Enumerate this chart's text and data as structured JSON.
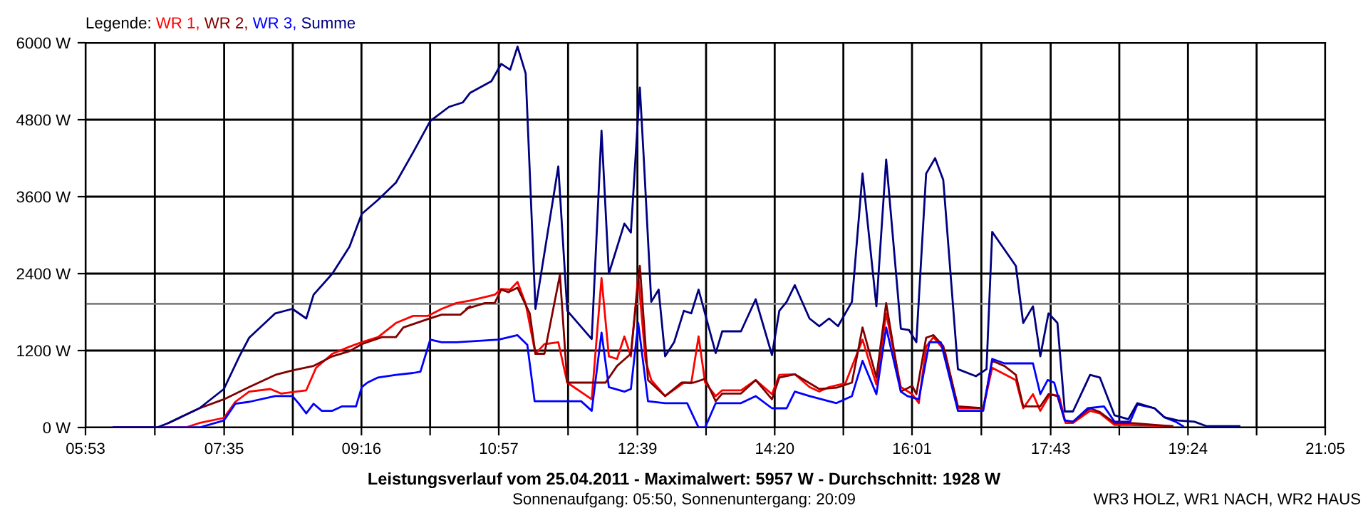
{
  "chart_data": {
    "type": "line",
    "title": "Leistungsverlauf vom 25.04.2011 - Maximalwert: 5957 W - Durchschnitt: 1928 W",
    "subtitle": "Sonnenaufgang: 05:50, Sonnenuntergang: 20:09",
    "legend_title": "Legende:",
    "annotations": [
      "WR3 HOLZ, WR1 NACH, WR2 HAUS"
    ],
    "series": [
      {
        "name": "WR 1,",
        "color": "#ff0000",
        "x": [
          6.23,
          7.11,
          7.28,
          7.58,
          7.72,
          7.89,
          8.15,
          8.28,
          8.59,
          8.71,
          8.91,
          9.12,
          9.27,
          9.47,
          9.69,
          9.9,
          10.08,
          10.25,
          10.43,
          10.6,
          10.9,
          10.98,
          11.09,
          11.18,
          11.28,
          11.4,
          11.51,
          11.68,
          11.79,
          12.09,
          12.21,
          12.3,
          12.4,
          12.49,
          12.57,
          12.66,
          12.75,
          12.82,
          12.99,
          13.22,
          13.31,
          13.4,
          13.48,
          13.61,
          13.69,
          13.92,
          14.1,
          14.3,
          14.39,
          14.58,
          14.76,
          14.88,
          15.0,
          15.2,
          15.41,
          15.58,
          15.7,
          15.88,
          16.02,
          16.1,
          16.19,
          16.28,
          16.42,
          16.58,
          16.89,
          17.0,
          17.29,
          17.38,
          17.5,
          17.59,
          17.71,
          17.82,
          17.9,
          17.99,
          18.2,
          18.32,
          18.5,
          18.69,
          19.21
        ],
        "values": [
          0,
          0,
          70,
          150,
          400,
          560,
          600,
          530,
          580,
          930,
          1150,
          1260,
          1330,
          1410,
          1630,
          1740,
          1740,
          1850,
          1940,
          1980,
          2070,
          2160,
          2150,
          2270,
          1930,
          1150,
          1300,
          1330,
          700,
          440,
          2330,
          1110,
          1070,
          1420,
          1110,
          2370,
          1040,
          740,
          490,
          700,
          690,
          1420,
          700,
          490,
          580,
          580,
          740,
          520,
          820,
          830,
          630,
          560,
          630,
          690,
          1370,
          670,
          1780,
          630,
          520,
          380,
          1260,
          1410,
          1190,
          300,
          300,
          930,
          740,
          300,
          520,
          260,
          520,
          490,
          70,
          70,
          260,
          220,
          40,
          40,
          20
        ]
      },
      {
        "name": "WR 2,",
        "color": "#800000",
        "x": [
          6.9,
          7.28,
          7.58,
          7.89,
          8.21,
          8.42,
          8.68,
          8.91,
          9.12,
          9.27,
          9.52,
          9.69,
          9.78,
          10.08,
          10.25,
          10.48,
          10.6,
          10.55,
          10.78,
          10.9,
          10.98,
          11.07,
          11.18,
          11.33,
          11.4,
          11.51,
          11.7,
          11.79,
          12.26,
          12.4,
          12.57,
          12.68,
          12.78,
          12.99,
          13.19,
          13.34,
          13.48,
          13.61,
          13.69,
          13.92,
          14.1,
          14.3,
          14.39,
          14.58,
          14.88,
          15.09,
          15.28,
          15.41,
          15.58,
          15.7,
          15.88,
          16.02,
          16.07,
          16.19,
          16.28,
          16.4,
          16.58,
          16.89,
          17.0,
          17.15,
          17.29,
          17.38,
          17.59,
          17.69,
          17.8,
          17.89,
          17.99,
          18.2,
          18.32,
          18.5,
          18.69,
          19.21
        ],
        "values": [
          70,
          300,
          440,
          630,
          820,
          890,
          960,
          1110,
          1190,
          1300,
          1410,
          1410,
          1560,
          1690,
          1760,
          1760,
          1890,
          1850,
          1940,
          1940,
          2150,
          2110,
          2180,
          1780,
          1150,
          1150,
          2380,
          700,
          700,
          960,
          1150,
          2520,
          740,
          490,
          700,
          700,
          760,
          410,
          530,
          530,
          740,
          440,
          780,
          830,
          600,
          620,
          700,
          1560,
          780,
          1940,
          560,
          650,
          520,
          1400,
          1440,
          1270,
          330,
          300,
          1040,
          960,
          820,
          330,
          330,
          520,
          490,
          110,
          90,
          300,
          240,
          70,
          70,
          20
        ]
      },
      {
        "name": "WR 3,",
        "color": "#0000ff",
        "x": [
          6.23,
          7.28,
          7.58,
          7.72,
          7.89,
          8.21,
          8.42,
          8.5,
          8.59,
          8.68,
          8.78,
          8.91,
          9.03,
          9.2,
          9.27,
          9.34,
          9.47,
          9.69,
          9.9,
          9.99,
          10.11,
          10.25,
          10.43,
          10.95,
          11.18,
          11.3,
          11.39,
          11.96,
          12.09,
          12.21,
          12.3,
          12.49,
          12.57,
          12.66,
          12.78,
          12.99,
          13.26,
          13.4,
          13.48,
          13.61,
          13.92,
          14.1,
          14.3,
          14.48,
          14.58,
          14.76,
          15.09,
          15.28,
          15.41,
          15.58,
          15.7,
          15.88,
          15.96,
          16.1,
          16.23,
          16.37,
          16.58,
          16.89,
          17.0,
          17.15,
          17.5,
          17.59,
          17.68,
          17.76,
          17.89,
          17.99,
          18.17,
          18.37,
          18.5,
          18.69,
          18.78,
          18.99,
          19.11,
          19.25,
          19.34
        ],
        "values": [
          0,
          0,
          110,
          370,
          400,
          490,
          490,
          370,
          220,
          370,
          260,
          260,
          330,
          330,
          630,
          700,
          780,
          820,
          850,
          870,
          1370,
          1330,
          1330,
          1370,
          1440,
          1290,
          410,
          410,
          260,
          1480,
          630,
          560,
          600,
          1630,
          410,
          380,
          380,
          0,
          0,
          380,
          380,
          490,
          300,
          300,
          560,
          490,
          380,
          490,
          1040,
          520,
          1560,
          560,
          490,
          440,
          1330,
          1330,
          260,
          260,
          1070,
          1000,
          1000,
          520,
          740,
          700,
          110,
          90,
          300,
          330,
          90,
          90,
          360,
          300,
          160,
          90,
          20
        ]
      },
      {
        "name": "Summe",
        "color": "#000080",
        "x": [
          6.23,
          6.76,
          6.9,
          7.28,
          7.58,
          7.77,
          7.89,
          8.21,
          8.42,
          8.59,
          8.68,
          8.91,
          9.12,
          9.27,
          9.47,
          9.69,
          9.9,
          10.11,
          10.34,
          10.51,
          10.6,
          10.86,
          10.98,
          11.09,
          11.18,
          11.28,
          11.4,
          11.68,
          11.79,
          12.09,
          12.21,
          12.3,
          12.49,
          12.57,
          12.68,
          12.73,
          12.82,
          12.91,
          12.99,
          13.1,
          13.22,
          13.31,
          13.4,
          13.61,
          13.69,
          13.92,
          14.1,
          14.3,
          14.39,
          14.48,
          14.58,
          14.76,
          14.88,
          15.0,
          15.11,
          15.28,
          15.41,
          15.58,
          15.7,
          15.88,
          15.98,
          16.07,
          16.19,
          16.3,
          16.4,
          16.58,
          16.8,
          16.93,
          17.0,
          17.29,
          17.38,
          17.5,
          17.59,
          17.69,
          17.8,
          17.89,
          17.99,
          18.2,
          18.32,
          18.5,
          18.67,
          18.78,
          18.99,
          19.11,
          19.28,
          19.48,
          19.63,
          20.03
        ],
        "values": [
          0,
          0,
          70,
          300,
          600,
          1110,
          1400,
          1780,
          1850,
          1700,
          2070,
          2400,
          2820,
          3330,
          3550,
          3820,
          4290,
          4780,
          5000,
          5070,
          5220,
          5400,
          5670,
          5580,
          5940,
          5520,
          1850,
          4070,
          1820,
          1380,
          4630,
          2400,
          3180,
          3040,
          5300,
          4150,
          1960,
          2150,
          1110,
          1330,
          1820,
          1780,
          2150,
          1160,
          1500,
          1500,
          2000,
          1130,
          1820,
          1960,
          2220,
          1700,
          1580,
          1700,
          1580,
          1960,
          3960,
          1890,
          4180,
          1540,
          1520,
          1330,
          3960,
          4200,
          3860,
          910,
          800,
          910,
          3050,
          2520,
          1630,
          1890,
          1110,
          1780,
          1630,
          250,
          250,
          820,
          780,
          190,
          130,
          380,
          300,
          160,
          110,
          90,
          20,
          20
        ]
      }
    ],
    "xlim": [
      5.8833,
      21.0833
    ],
    "xticks": [
      {
        "value": 5.8833,
        "label": "05:53"
      },
      {
        "value": 6.7333,
        "label": null
      },
      {
        "value": 7.5833,
        "label": "07:35"
      },
      {
        "value": 8.425,
        "label": null
      },
      {
        "value": 9.2667,
        "label": "09:16"
      },
      {
        "value": 10.1083,
        "label": null
      },
      {
        "value": 10.95,
        "label": "10:57"
      },
      {
        "value": 11.8,
        "label": null
      },
      {
        "value": 12.65,
        "label": "12:39"
      },
      {
        "value": 13.4917,
        "label": null
      },
      {
        "value": 14.3333,
        "label": "14:20"
      },
      {
        "value": 15.175,
        "label": null
      },
      {
        "value": 16.0167,
        "label": "16:01"
      },
      {
        "value": 16.8667,
        "label": null
      },
      {
        "value": 17.7167,
        "label": "17:43"
      },
      {
        "value": 18.5583,
        "label": null
      },
      {
        "value": 19.4,
        "label": "19:24"
      },
      {
        "value": 20.2417,
        "label": null
      },
      {
        "value": 21.0833,
        "label": "21:05"
      }
    ],
    "ylim": [
      0,
      6000
    ],
    "yticks": [
      {
        "value": 0,
        "label": "0 W"
      },
      {
        "value": 1200,
        "label": "1200 W"
      },
      {
        "value": 2400,
        "label": "2400 W"
      },
      {
        "value": 3600,
        "label": "3600 W"
      },
      {
        "value": 4800,
        "label": "4800 W"
      },
      {
        "value": 6000,
        "label": "6000 W"
      }
    ],
    "ref_lines": [
      {
        "axis": "y",
        "value": 1928,
        "color": "#808080"
      }
    ],
    "grid": true,
    "legend": "top left",
    "marker": "none",
    "line_style": "solid"
  }
}
